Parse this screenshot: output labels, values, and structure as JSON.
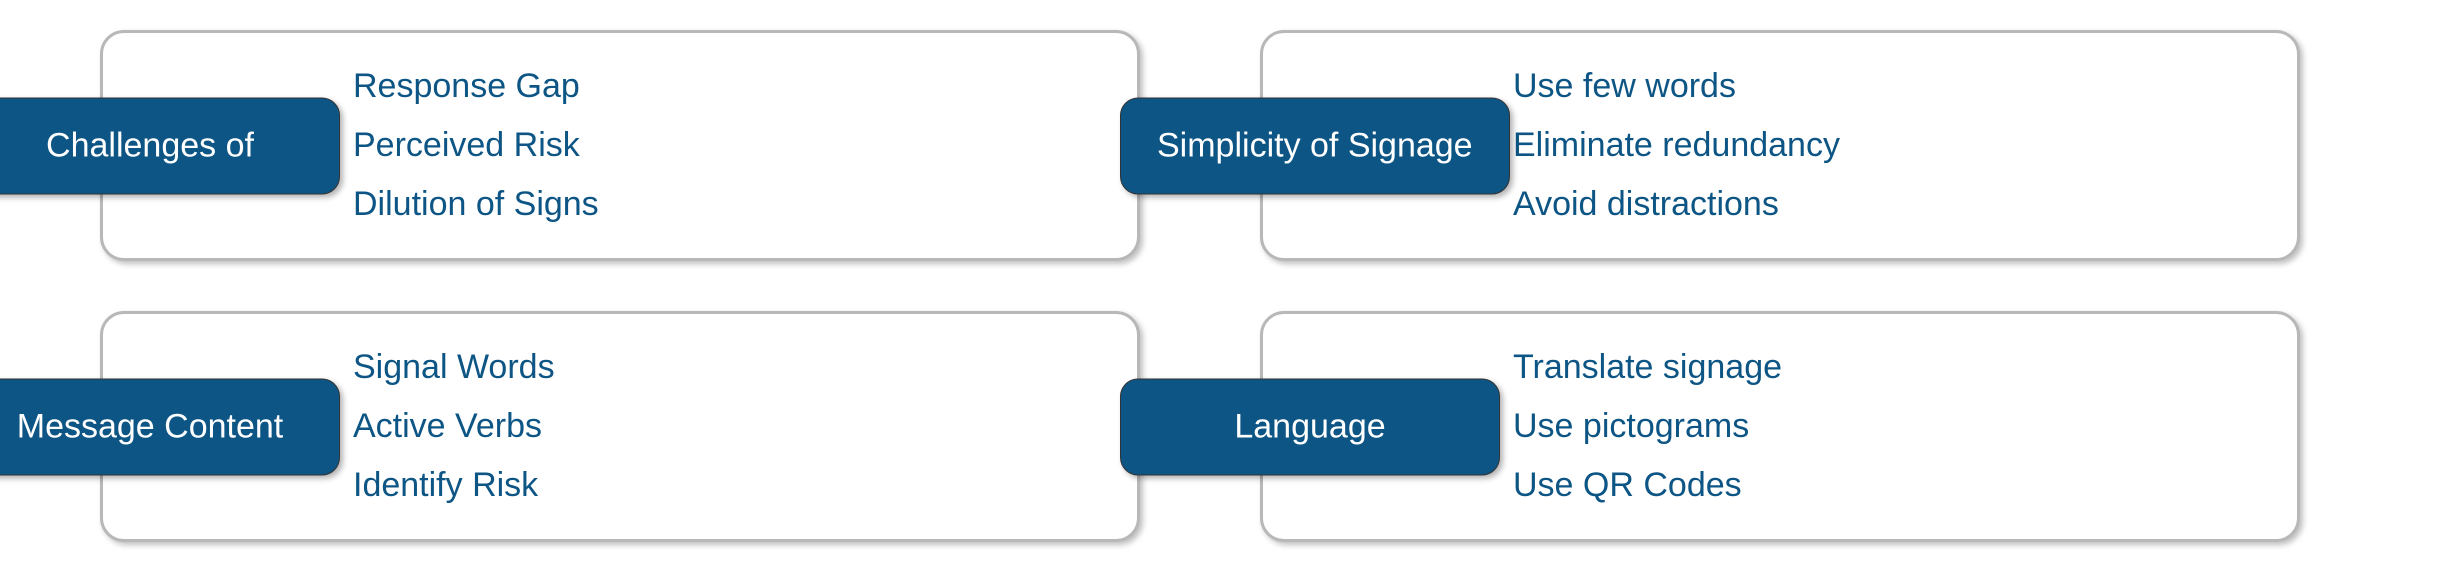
{
  "colors": {
    "pill_bg": "#0d5584",
    "pill_text": "#ffffff",
    "item_text": "#0d5584",
    "box_border": "#b8b8b8",
    "box_bg": "#ffffff",
    "shadow": "rgba(0,0,0,0.25)"
  },
  "typography": {
    "font_family": "Arial",
    "title_fontsize": 34,
    "item_fontsize": 34,
    "title_weight": 400,
    "item_weight": 400
  },
  "layout": {
    "type": "infographic",
    "grid_cols": 2,
    "grid_rows": 2,
    "pill_border_radius": 18,
    "box_border_radius": 24
  },
  "cards": [
    {
      "title": "Challenges of",
      "items": [
        "Response Gap",
        "Perceived Risk",
        "Dilution of Signs"
      ]
    },
    {
      "title": "Simplicity of Signage",
      "items": [
        "Use few words",
        "Eliminate redundancy",
        "Avoid distractions"
      ]
    },
    {
      "title": "Message Content",
      "items": [
        "Signal Words",
        "Active Verbs",
        "Identify Risk"
      ]
    },
    {
      "title": "Language",
      "items": [
        "Translate signage",
        "Use pictograms",
        "Use QR Codes"
      ]
    }
  ]
}
